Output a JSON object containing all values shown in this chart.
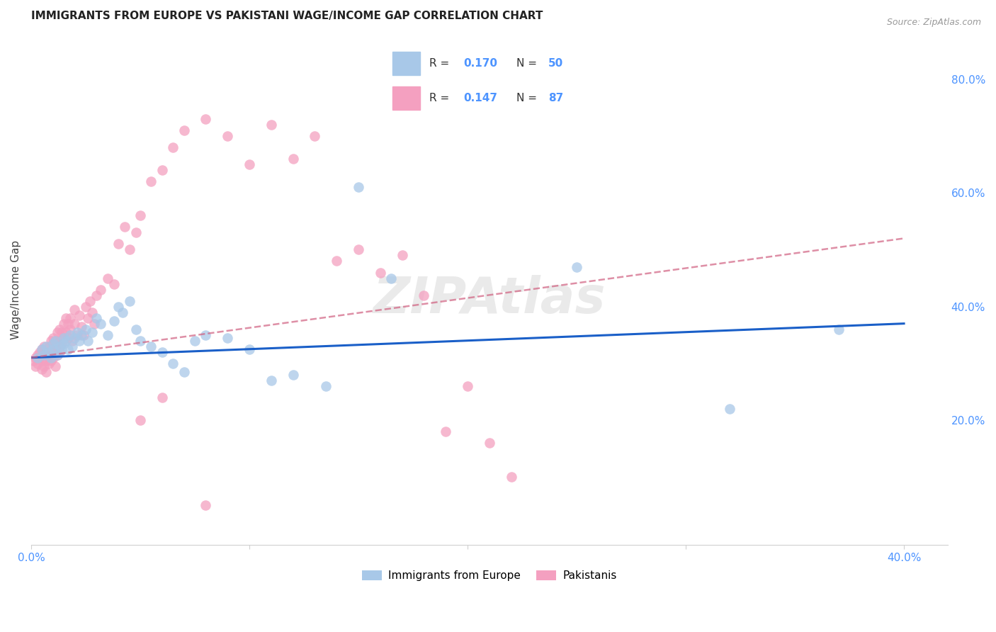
{
  "title": "IMMIGRANTS FROM EUROPE VS PAKISTANI WAGE/INCOME GAP CORRELATION CHART",
  "source": "Source: ZipAtlas.com",
  "ylabel": "Wage/Income Gap",
  "xlim": [
    0.0,
    0.42
  ],
  "ylim": [
    -0.02,
    0.88
  ],
  "yticks": [
    0.0,
    0.2,
    0.4,
    0.6,
    0.8
  ],
  "ytick_labels": [
    "",
    "20.0%",
    "40.0%",
    "60.0%",
    "80.0%"
  ],
  "xticks": [
    0.0,
    0.1,
    0.2,
    0.3,
    0.4
  ],
  "xtick_labels": [
    "0.0%",
    "",
    "",
    "",
    "40.0%"
  ],
  "watermark": "ZIPAtlas",
  "blue_scatter_x": [
    0.003,
    0.005,
    0.006,
    0.007,
    0.008,
    0.009,
    0.01,
    0.01,
    0.011,
    0.012,
    0.013,
    0.014,
    0.015,
    0.015,
    0.016,
    0.017,
    0.018,
    0.019,
    0.02,
    0.021,
    0.022,
    0.023,
    0.025,
    0.026,
    0.028,
    0.03,
    0.032,
    0.035,
    0.038,
    0.04,
    0.042,
    0.045,
    0.048,
    0.05,
    0.055,
    0.06,
    0.065,
    0.07,
    0.075,
    0.08,
    0.09,
    0.1,
    0.11,
    0.12,
    0.135,
    0.15,
    0.165,
    0.25,
    0.32,
    0.37
  ],
  "blue_scatter_y": [
    0.31,
    0.325,
    0.315,
    0.33,
    0.32,
    0.31,
    0.335,
    0.325,
    0.34,
    0.315,
    0.33,
    0.325,
    0.345,
    0.335,
    0.34,
    0.325,
    0.35,
    0.33,
    0.345,
    0.355,
    0.34,
    0.35,
    0.36,
    0.34,
    0.355,
    0.38,
    0.37,
    0.35,
    0.375,
    0.4,
    0.39,
    0.41,
    0.36,
    0.34,
    0.33,
    0.32,
    0.3,
    0.285,
    0.34,
    0.35,
    0.345,
    0.325,
    0.27,
    0.28,
    0.26,
    0.61,
    0.45,
    0.47,
    0.22,
    0.36
  ],
  "pink_scatter_x": [
    0.001,
    0.002,
    0.002,
    0.003,
    0.003,
    0.004,
    0.004,
    0.005,
    0.005,
    0.005,
    0.006,
    0.006,
    0.006,
    0.007,
    0.007,
    0.007,
    0.008,
    0.008,
    0.008,
    0.009,
    0.009,
    0.009,
    0.01,
    0.01,
    0.01,
    0.011,
    0.011,
    0.011,
    0.012,
    0.012,
    0.012,
    0.013,
    0.013,
    0.013,
    0.014,
    0.014,
    0.015,
    0.015,
    0.016,
    0.016,
    0.017,
    0.017,
    0.018,
    0.018,
    0.019,
    0.02,
    0.02,
    0.021,
    0.022,
    0.023,
    0.024,
    0.025,
    0.026,
    0.027,
    0.028,
    0.029,
    0.03,
    0.032,
    0.035,
    0.038,
    0.04,
    0.043,
    0.045,
    0.048,
    0.05,
    0.055,
    0.06,
    0.065,
    0.07,
    0.08,
    0.09,
    0.1,
    0.11,
    0.12,
    0.13,
    0.14,
    0.15,
    0.16,
    0.17,
    0.18,
    0.19,
    0.2,
    0.21,
    0.22,
    0.05,
    0.06,
    0.08
  ],
  "pink_scatter_y": [
    0.305,
    0.31,
    0.295,
    0.315,
    0.3,
    0.32,
    0.31,
    0.325,
    0.305,
    0.29,
    0.33,
    0.315,
    0.295,
    0.32,
    0.305,
    0.285,
    0.33,
    0.315,
    0.3,
    0.34,
    0.32,
    0.305,
    0.345,
    0.325,
    0.31,
    0.34,
    0.32,
    0.295,
    0.355,
    0.335,
    0.315,
    0.36,
    0.34,
    0.32,
    0.355,
    0.335,
    0.37,
    0.345,
    0.38,
    0.355,
    0.37,
    0.345,
    0.38,
    0.36,
    0.34,
    0.395,
    0.37,
    0.35,
    0.385,
    0.365,
    0.35,
    0.4,
    0.38,
    0.41,
    0.39,
    0.37,
    0.42,
    0.43,
    0.45,
    0.44,
    0.51,
    0.54,
    0.5,
    0.53,
    0.56,
    0.62,
    0.64,
    0.68,
    0.71,
    0.73,
    0.7,
    0.65,
    0.72,
    0.66,
    0.7,
    0.48,
    0.5,
    0.46,
    0.49,
    0.42,
    0.18,
    0.26,
    0.16,
    0.1,
    0.2,
    0.24,
    0.05
  ],
  "blue_line_x": [
    0.0,
    0.4
  ],
  "blue_line_y": [
    0.31,
    0.37
  ],
  "pink_line_x": [
    0.0,
    0.4
  ],
  "pink_line_y": [
    0.31,
    0.52
  ],
  "axis_color": "#4d94ff",
  "scatter_blue": "#a8c8e8",
  "scatter_pink": "#f4a0c0",
  "line_blue": "#1a5fc8",
  "line_pink": "#d06080",
  "background_color": "#ffffff",
  "grid_color": "#d0d0d0",
  "legend_blue_r": "0.170",
  "legend_blue_n": "50",
  "legend_pink_r": "0.147",
  "legend_pink_n": "87"
}
